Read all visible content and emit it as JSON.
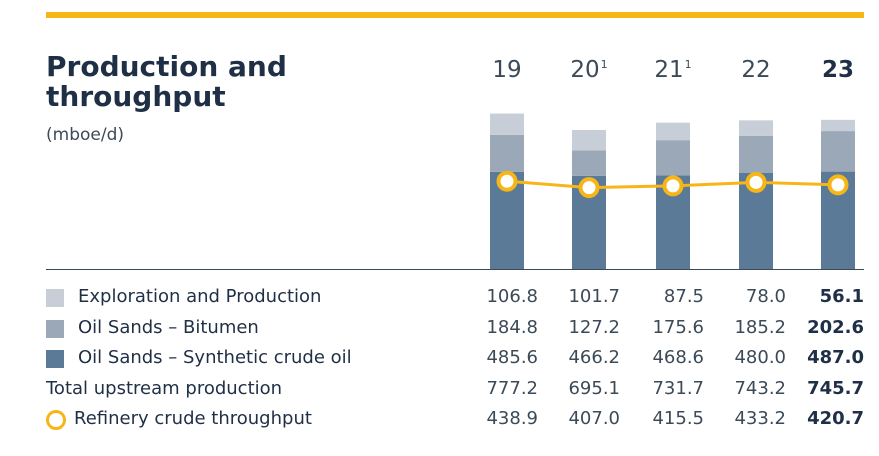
{
  "title_line1": "Production and",
  "title_line2": "throughput",
  "unit": "(mboe/d)",
  "years": [
    {
      "label": "19",
      "note": ""
    },
    {
      "label": "20",
      "note": "1"
    },
    {
      "label": "21",
      "note": "1"
    },
    {
      "label": "22",
      "note": ""
    },
    {
      "label": "23",
      "note": ""
    }
  ],
  "colors": {
    "exploration": "#c8ced8",
    "bitumen": "#9ba8b8",
    "synthetic": "#5a7a97",
    "throughput": "#f7b618"
  },
  "rows": [
    {
      "label": "Exploration and Production",
      "values": [
        "106.8",
        "101.7",
        "87.5",
        "78.0",
        "56.1"
      ],
      "swatch": "exploration"
    },
    {
      "label": "Oil Sands – Bitumen",
      "values": [
        "184.8",
        "127.2",
        "175.6",
        "185.2",
        "202.6"
      ],
      "swatch": "bitumen"
    },
    {
      "label": "Oil Sands – Synthetic crude oil",
      "values": [
        "485.6",
        "466.2",
        "468.6",
        "480.0",
        "487.0"
      ],
      "swatch": "synthetic"
    },
    {
      "label": "Total upstream production",
      "values": [
        "777.2",
        "695.1",
        "731.7",
        "743.2",
        "745.7"
      ],
      "swatch": ""
    },
    {
      "label": "Refinery crude throughput",
      "values": [
        "438.9",
        "407.0",
        "415.5",
        "433.2",
        "420.7"
      ],
      "swatch": "ring"
    }
  ],
  "chart_data": {
    "type": "bar",
    "stacked": true,
    "categories": [
      "19",
      "20",
      "21",
      "22",
      "23"
    ],
    "series": [
      {
        "name": "Oil Sands – Synthetic crude oil",
        "values": [
          485.6,
          466.2,
          468.6,
          480.0,
          487.0
        ]
      },
      {
        "name": "Oil Sands – Bitumen",
        "values": [
          184.8,
          127.2,
          175.6,
          185.2,
          202.6
        ]
      },
      {
        "name": "Exploration and Production",
        "values": [
          106.8,
          101.7,
          87.5,
          78.0,
          56.1
        ]
      }
    ],
    "line": {
      "name": "Refinery crude throughput",
      "values": [
        438.9,
        407.0,
        415.5,
        433.2,
        420.7
      ]
    },
    "totals": {
      "name": "Total upstream production",
      "values": [
        777.2,
        695.1,
        731.7,
        743.2,
        745.7
      ]
    }
  }
}
